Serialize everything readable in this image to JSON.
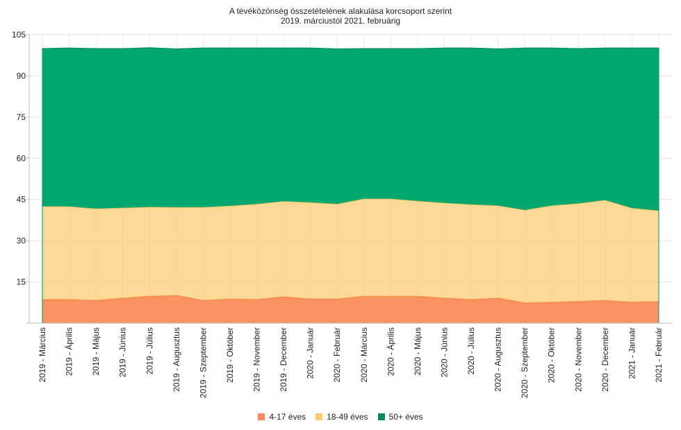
{
  "chart_data": {
    "type": "area",
    "stacked": true,
    "title": "A tévéközönség összetételének alakulása korcsoport szerint",
    "subtitle": "2019. márciustól 2021. februárig",
    "xlabel": "",
    "ylabel": "",
    "ylim": [
      0,
      105
    ],
    "yticks": [
      15,
      30,
      45,
      60,
      75,
      90,
      105
    ],
    "grid": true,
    "legend_position": "bottom",
    "categories": [
      "2019 - Március",
      "2019 - Április",
      "2019 - Május",
      "2019 - Június",
      "2019 - Július",
      "2019 - Augusztus",
      "2019 - Szeptember",
      "2019 - Október",
      "2019 - November",
      "2019 - December",
      "2020 - Január",
      "2020 - Február",
      "2020 - Március",
      "2020 - Április",
      "2020 - Május",
      "2020 - Június",
      "2020 - Július",
      "2020 - Augusztus",
      "2020 - Szeptember",
      "2020 - Október",
      "2020 - November",
      "2020 - December",
      "2021 - Január",
      "2021 - Február"
    ],
    "series": [
      {
        "name": "4-17 éves",
        "color": "#fb8c5a",
        "values": [
          8.6,
          8.6,
          8.3,
          9.1,
          9.8,
          10.1,
          8.3,
          8.8,
          8.6,
          9.6,
          8.8,
          8.8,
          9.8,
          9.8,
          9.8,
          9.1,
          8.6,
          9.1,
          7.4,
          7.6,
          7.9,
          8.3,
          7.6,
          7.9
        ]
      },
      {
        "name": "18-49 éves",
        "color": "#fccb6e",
        "values": [
          33.9,
          33.9,
          33.4,
          32.9,
          32.5,
          32.1,
          33.9,
          33.9,
          34.8,
          34.8,
          35.2,
          34.6,
          35.5,
          35.5,
          34.7,
          34.7,
          34.6,
          33.7,
          33.8,
          35.2,
          35.7,
          36.5,
          34.3,
          33.1
        ]
      },
      {
        "name": "50+ éves",
        "color": "#00a870",
        "values": [
          57.4,
          57.6,
          58.2,
          57.9,
          57.9,
          57.6,
          57.9,
          57.4,
          56.7,
          55.7,
          56.1,
          56.4,
          54.6,
          54.6,
          55.4,
          56.3,
          56.9,
          57.0,
          58.9,
          57.3,
          56.3,
          55.3,
          58.2,
          59.1
        ]
      }
    ]
  }
}
